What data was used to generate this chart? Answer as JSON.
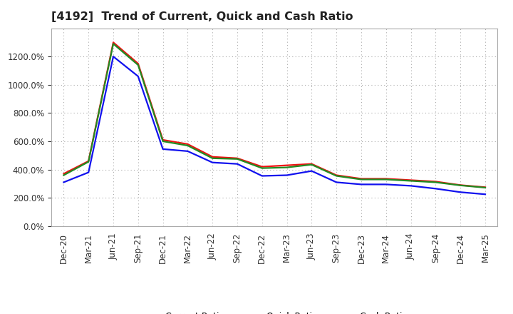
{
  "title": "[4192]  Trend of Current, Quick and Cash Ratio",
  "title_fontsize": 11.5,
  "background_color": "#ffffff",
  "plot_bg_color": "#ffffff",
  "grid_color": "#aaaaaa",
  "x_labels": [
    "Dec-20",
    "Mar-21",
    "Jun-21",
    "Sep-21",
    "Dec-21",
    "Mar-22",
    "Jun-22",
    "Sep-22",
    "Dec-22",
    "Mar-23",
    "Jun-23",
    "Sep-23",
    "Dec-23",
    "Mar-24",
    "Jun-24",
    "Sep-24",
    "Dec-24",
    "Mar-25"
  ],
  "current_ratio": [
    370,
    460,
    1300,
    1150,
    610,
    580,
    490,
    480,
    420,
    430,
    440,
    360,
    335,
    335,
    325,
    315,
    290,
    275
  ],
  "quick_ratio": [
    360,
    455,
    1290,
    1140,
    600,
    570,
    480,
    475,
    410,
    415,
    435,
    355,
    330,
    330,
    320,
    310,
    288,
    272
  ],
  "cash_ratio": [
    310,
    380,
    1200,
    1060,
    545,
    530,
    450,
    440,
    355,
    360,
    390,
    310,
    295,
    295,
    285,
    265,
    240,
    225
  ],
  "current_color": "#ee1111",
  "quick_color": "#228B22",
  "cash_color": "#1111ee",
  "line_width": 1.6,
  "ylim": [
    0,
    1400
  ],
  "yticks": [
    0,
    200,
    400,
    600,
    800,
    1000,
    1200
  ],
  "legend_labels": [
    "Current Ratio",
    "Quick Ratio",
    "Cash Ratio"
  ],
  "legend_fontsize": 9,
  "tick_fontsize": 8.5,
  "ylabel_fontsize": 8.5
}
